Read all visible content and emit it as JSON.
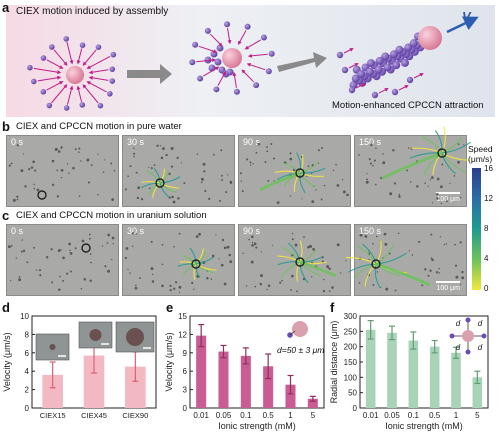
{
  "panel_a": {
    "label": "a",
    "title": "CIEX motion induced by assembly",
    "velocity_symbol": "V",
    "caption": "Motion-enhanced CPCCN attraction"
  },
  "panel_b": {
    "label": "b",
    "title": "CIEX and CPCCN motion in pure water",
    "frames": [
      "0 s",
      "30 s",
      "90 s",
      "150 s"
    ],
    "scale_bar": "100 μm"
  },
  "panel_c": {
    "label": "c",
    "title": "CIEX and CPCCN motion in  uranium solution",
    "frames": [
      "0 s",
      "30 s",
      "90 s",
      "150 s"
    ],
    "scale_bar": "100 μm"
  },
  "colorbar": {
    "title_line1": "Speed",
    "title_line2": "(μm/s)",
    "ticks": [
      "16",
      "12",
      "8",
      "4",
      "0"
    ],
    "colors": [
      "#2c3e8c",
      "#2a6fa8",
      "#1f9c8f",
      "#6cc25a",
      "#f3e83a"
    ]
  },
  "panel_d_label": "d",
  "panel_e_label": "e",
  "panel_f_label": "f",
  "panel_e_annotation": "d=50 ± 3 μm",
  "panel_f_inset_label": "d",
  "chart_data": [
    {
      "type": "bar",
      "panel": "d",
      "categories": [
        "CIEX15",
        "CIEX45",
        "CIEX90"
      ],
      "values": [
        3.6,
        5.7,
        4.5
      ],
      "errors": [
        1.4,
        1.9,
        1.6
      ],
      "ylabel": "Velocity (μm/s)",
      "ylim": [
        0,
        10
      ],
      "yticks": [
        0,
        2,
        4,
        6,
        8,
        10
      ],
      "bar_color": "#f2b9c3"
    },
    {
      "type": "bar",
      "panel": "e",
      "categories": [
        "0.01",
        "0.05",
        "0.1",
        "0.5",
        "1",
        "5"
      ],
      "values": [
        11.8,
        9.2,
        8.5,
        6.8,
        3.8,
        1.5
      ],
      "errors": [
        1.8,
        1.0,
        1.3,
        2.0,
        1.5,
        0.4
      ],
      "xlabel": "Ionic strength (mM)",
      "ylabel": "Velocity (μm/s)",
      "ylim": [
        0,
        15
      ],
      "yticks": [
        0,
        3,
        6,
        9,
        12,
        15
      ],
      "bar_color": "#c95c92"
    },
    {
      "type": "bar",
      "panel": "f",
      "categories": [
        "0.01",
        "0.05",
        "0.1",
        "0.5",
        "1",
        "5"
      ],
      "values": [
        255,
        245,
        220,
        200,
        180,
        100
      ],
      "errors": [
        30,
        22,
        28,
        20,
        18,
        20
      ],
      "xlabel": "Ionic strength (mM)",
      "ylabel": "Radial distance (μm)",
      "ylim": [
        0,
        300
      ],
      "yticks": [
        0,
        50,
        100,
        150,
        200,
        250,
        300
      ],
      "bar_color": "#a9d3b6"
    }
  ]
}
